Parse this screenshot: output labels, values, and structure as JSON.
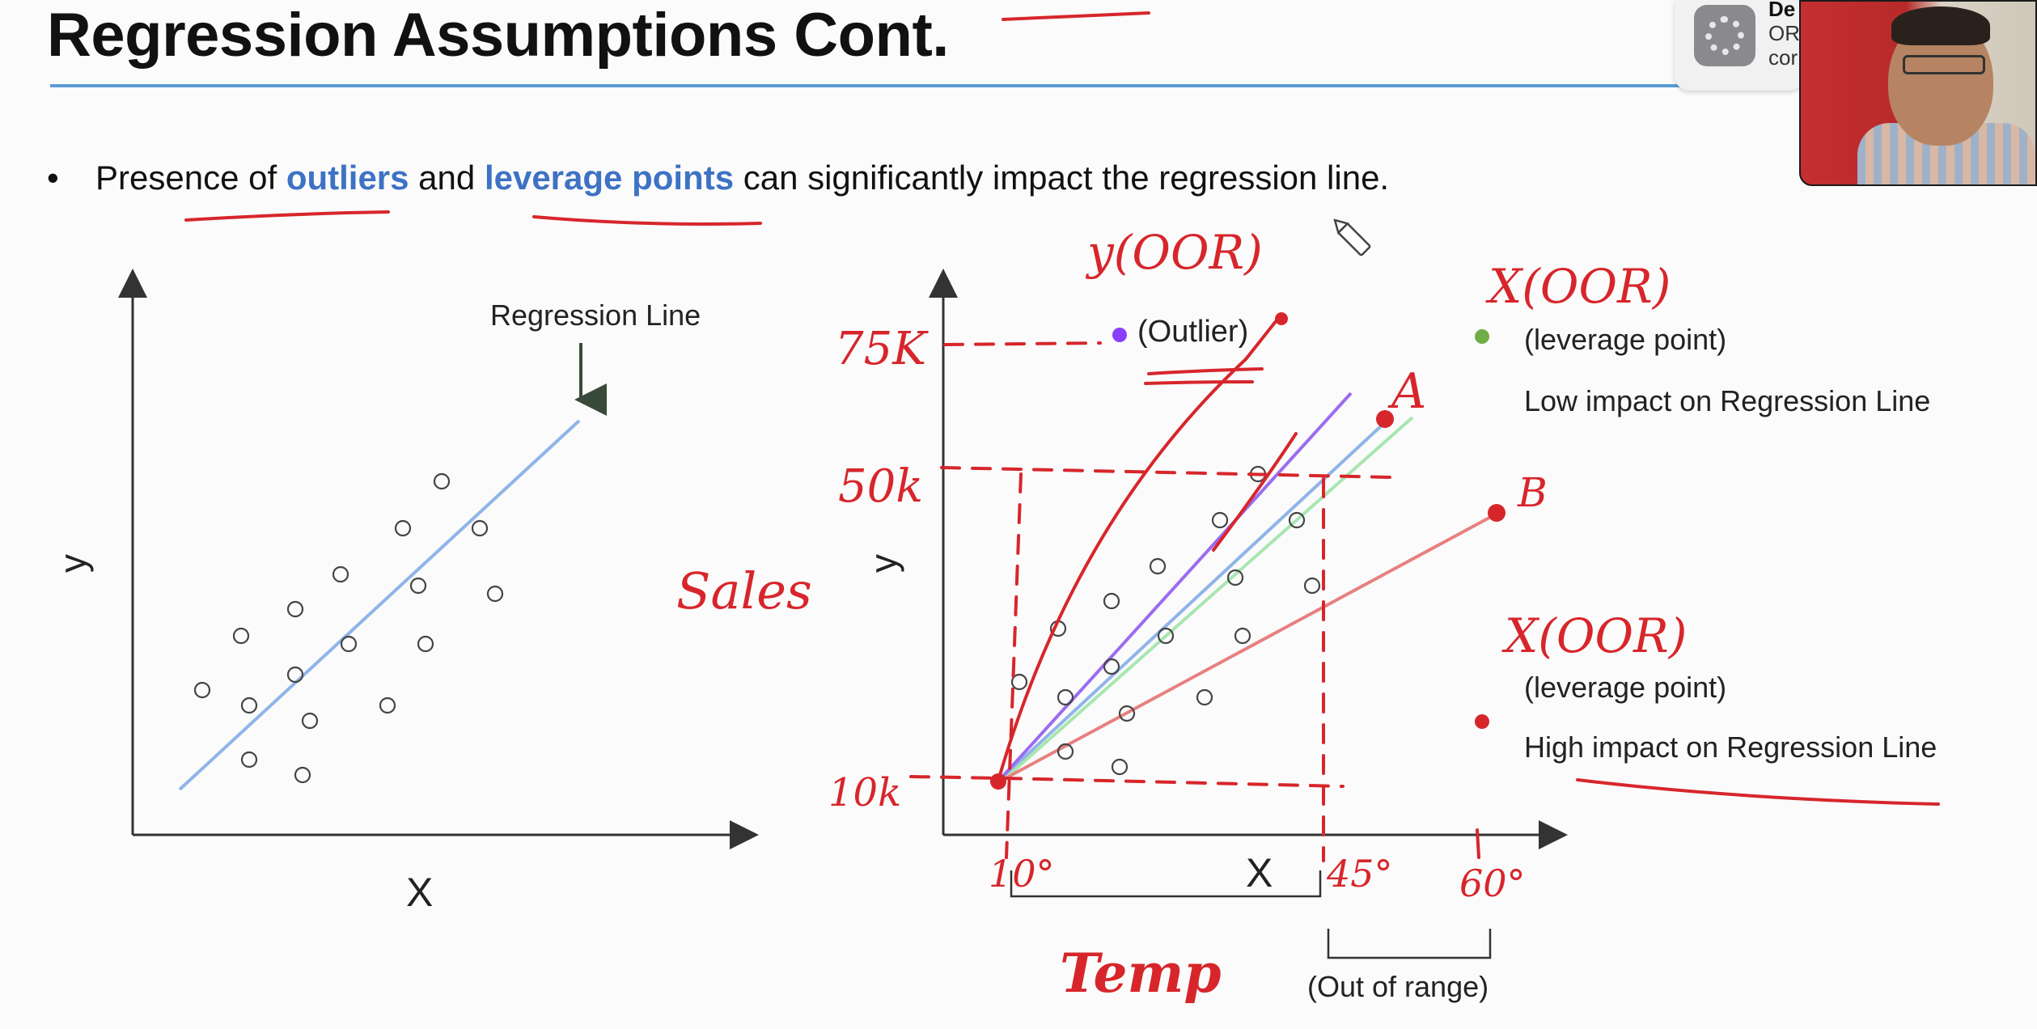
{
  "slide": {
    "title": "Regression Assumptions Cont.",
    "bullet": {
      "pre": "Presence of ",
      "outliers": "outliers",
      "mid": " and ",
      "leverage": "leverage points",
      "post": " can significantly impact the regression line."
    }
  },
  "left_chart": {
    "y_label": "y",
    "x_label": "X",
    "arrow_label": "Regression Line"
  },
  "right_chart": {
    "y_label": "y",
    "x_label": "X",
    "outlier_label": "(Outlier)",
    "out_of_range_label": "(Out of range)",
    "leverage_low": {
      "label": "(leverage point)",
      "desc": "Low impact on Regression Line",
      "color": "#70ad47"
    },
    "leverage_high": {
      "label": "(leverage point)",
      "desc": "High impact on Regression Line",
      "color": "#d7262b"
    },
    "outlier_color": "#8a3ffc"
  },
  "annotations": {
    "y_oor": "y(OOR)",
    "x_oor_top": "X(OOR)",
    "x_oor_bottom": "X(OOR)",
    "sales": "Sales",
    "temp": "Temp",
    "v75k": "75K",
    "v50k": "50k",
    "v10k": "10k",
    "t10": "10°",
    "t45": "45°",
    "t60": "60°",
    "pt_a": "A",
    "pt_b": "B",
    "ink_color": "#d7262b"
  },
  "notification": {
    "line1": "De",
    "line2": "OR",
    "line3": "cor",
    "icon": "settings-gear-icon"
  }
}
